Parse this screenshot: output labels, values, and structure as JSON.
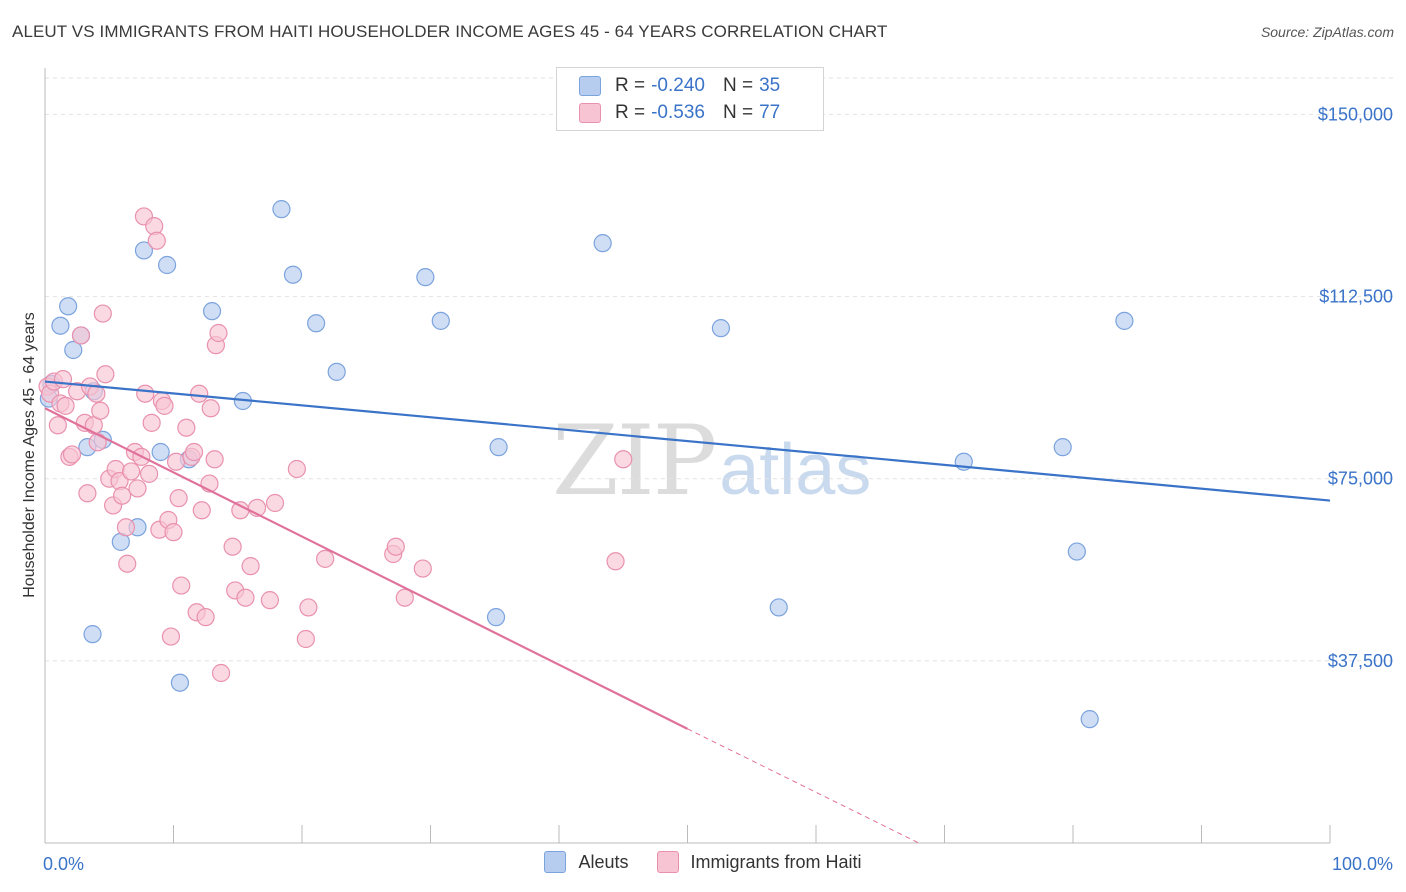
{
  "header": {
    "title": "ALEUT VS IMMIGRANTS FROM HAITI HOUSEHOLDER INCOME AGES 45 - 64 YEARS CORRELATION CHART",
    "source": "Source: ZipAtlas.com"
  },
  "watermark": {
    "zip": "ZIP",
    "atlas": "atlas"
  },
  "legend": {
    "rows": [
      {
        "r_label": "R =",
        "r_value": "-0.240",
        "n_label": "N =",
        "n_value": "35"
      },
      {
        "r_label": "R =",
        "r_value": "-0.536",
        "n_label": "N =",
        "n_value": "77"
      }
    ]
  },
  "colors": {
    "aleut_fill": "#b6cdf0",
    "aleut_stroke": "#7ba3dd",
    "aleut_line": "#3a73c8",
    "haiti_fill": "#f7c4d4",
    "haiti_stroke": "#e991ae",
    "haiti_line": "#e0719a",
    "tick_label": "#3a73c8",
    "grid": "#e2e2e2"
  },
  "chart_data": {
    "type": "scatter",
    "title": "ALEUT VS IMMIGRANTS FROM HAITI HOUSEHOLDER INCOME AGES 45 - 64 YEARS CORRELATION CHART",
    "xlabel": "",
    "ylabel": "Householder Income Ages 45 - 64 years",
    "xlim": [
      0,
      100
    ],
    "ylim": [
      0,
      157500
    ],
    "x_tick_labels": [
      "0.0%",
      "100.0%"
    ],
    "y_ticks": [
      37500,
      75000,
      112500,
      150000
    ],
    "y_tick_labels": [
      "$37,500",
      "$75,000",
      "$112,500",
      "$150,000"
    ],
    "grid": true,
    "legend_position": "top-center",
    "series": [
      {
        "name": "Aleuts",
        "trend": {
          "x": [
            0,
            100
          ],
          "y": [
            95000,
            70500
          ]
        },
        "points": [
          [
            0.3,
            91500
          ],
          [
            0.5,
            94500
          ],
          [
            1.2,
            106500
          ],
          [
            1.8,
            110500
          ],
          [
            2.2,
            101500
          ],
          [
            2.8,
            104500
          ],
          [
            3.3,
            81500
          ],
          [
            3.7,
            43000
          ],
          [
            3.8,
            93000
          ],
          [
            4.5,
            83000
          ],
          [
            5.9,
            62000
          ],
          [
            7.2,
            65000
          ],
          [
            7.7,
            122000
          ],
          [
            9.0,
            80500
          ],
          [
            9.5,
            119000
          ],
          [
            10.5,
            33000
          ],
          [
            11.2,
            79000
          ],
          [
            13.0,
            109500
          ],
          [
            15.4,
            91000
          ],
          [
            18.4,
            130500
          ],
          [
            19.3,
            117000
          ],
          [
            21.1,
            107000
          ],
          [
            22.7,
            97000
          ],
          [
            29.6,
            116500
          ],
          [
            30.8,
            107500
          ],
          [
            35.1,
            46500
          ],
          [
            35.3,
            81500
          ],
          [
            43.4,
            123500
          ],
          [
            52.6,
            106000
          ],
          [
            57.1,
            48500
          ],
          [
            71.5,
            78500
          ],
          [
            79.2,
            81500
          ],
          [
            80.3,
            60000
          ],
          [
            81.3,
            25500
          ],
          [
            84.0,
            107500
          ]
        ]
      },
      {
        "name": "Immigrants from Haiti",
        "trend": {
          "x": [
            0,
            50
          ],
          "y": [
            89500,
            23500
          ]
        },
        "trend_dashed": {
          "x": [
            50,
            68
          ],
          "y": [
            23500,
            0
          ]
        },
        "points": [
          [
            0.2,
            94000
          ],
          [
            0.4,
            92500
          ],
          [
            0.7,
            95000
          ],
          [
            1.0,
            86000
          ],
          [
            1.2,
            90500
          ],
          [
            1.4,
            95500
          ],
          [
            1.6,
            90000
          ],
          [
            1.9,
            79500
          ],
          [
            2.1,
            80000
          ],
          [
            2.5,
            93000
          ],
          [
            2.8,
            104500
          ],
          [
            3.1,
            86500
          ],
          [
            3.3,
            72000
          ],
          [
            3.5,
            94000
          ],
          [
            3.8,
            86000
          ],
          [
            4.0,
            92500
          ],
          [
            4.1,
            82500
          ],
          [
            4.3,
            89000
          ],
          [
            4.5,
            109000
          ],
          [
            4.7,
            96500
          ],
          [
            5.0,
            75000
          ],
          [
            5.3,
            69500
          ],
          [
            5.5,
            77000
          ],
          [
            5.8,
            74500
          ],
          [
            6.0,
            71500
          ],
          [
            6.3,
            65000
          ],
          [
            6.4,
            57500
          ],
          [
            6.7,
            76500
          ],
          [
            7.0,
            80500
          ],
          [
            7.2,
            73000
          ],
          [
            7.5,
            79500
          ],
          [
            7.7,
            129000
          ],
          [
            7.8,
            92500
          ],
          [
            8.1,
            76000
          ],
          [
            8.3,
            86500
          ],
          [
            8.5,
            127000
          ],
          [
            8.7,
            124000
          ],
          [
            8.9,
            64500
          ],
          [
            9.1,
            91000
          ],
          [
            9.3,
            90000
          ],
          [
            9.6,
            66500
          ],
          [
            9.8,
            42500
          ],
          [
            10.0,
            64000
          ],
          [
            10.2,
            78500
          ],
          [
            10.4,
            71000
          ],
          [
            10.6,
            53000
          ],
          [
            11.0,
            85500
          ],
          [
            11.4,
            79500
          ],
          [
            11.6,
            80500
          ],
          [
            11.8,
            47500
          ],
          [
            12.0,
            92500
          ],
          [
            12.2,
            68500
          ],
          [
            12.5,
            46500
          ],
          [
            12.8,
            74000
          ],
          [
            12.9,
            89500
          ],
          [
            13.2,
            79000
          ],
          [
            13.3,
            102500
          ],
          [
            13.5,
            105000
          ],
          [
            13.7,
            35000
          ],
          [
            14.6,
            61000
          ],
          [
            14.8,
            52000
          ],
          [
            15.2,
            68500
          ],
          [
            15.6,
            50500
          ],
          [
            16.0,
            57000
          ],
          [
            16.5,
            69000
          ],
          [
            17.5,
            50000
          ],
          [
            17.9,
            70000
          ],
          [
            19.6,
            77000
          ],
          [
            20.3,
            42000
          ],
          [
            20.5,
            48500
          ],
          [
            21.8,
            58500
          ],
          [
            27.1,
            59500
          ],
          [
            27.3,
            61000
          ],
          [
            28.0,
            50500
          ],
          [
            29.4,
            56500
          ],
          [
            44.4,
            58000
          ],
          [
            45.0,
            79000
          ]
        ]
      }
    ]
  }
}
